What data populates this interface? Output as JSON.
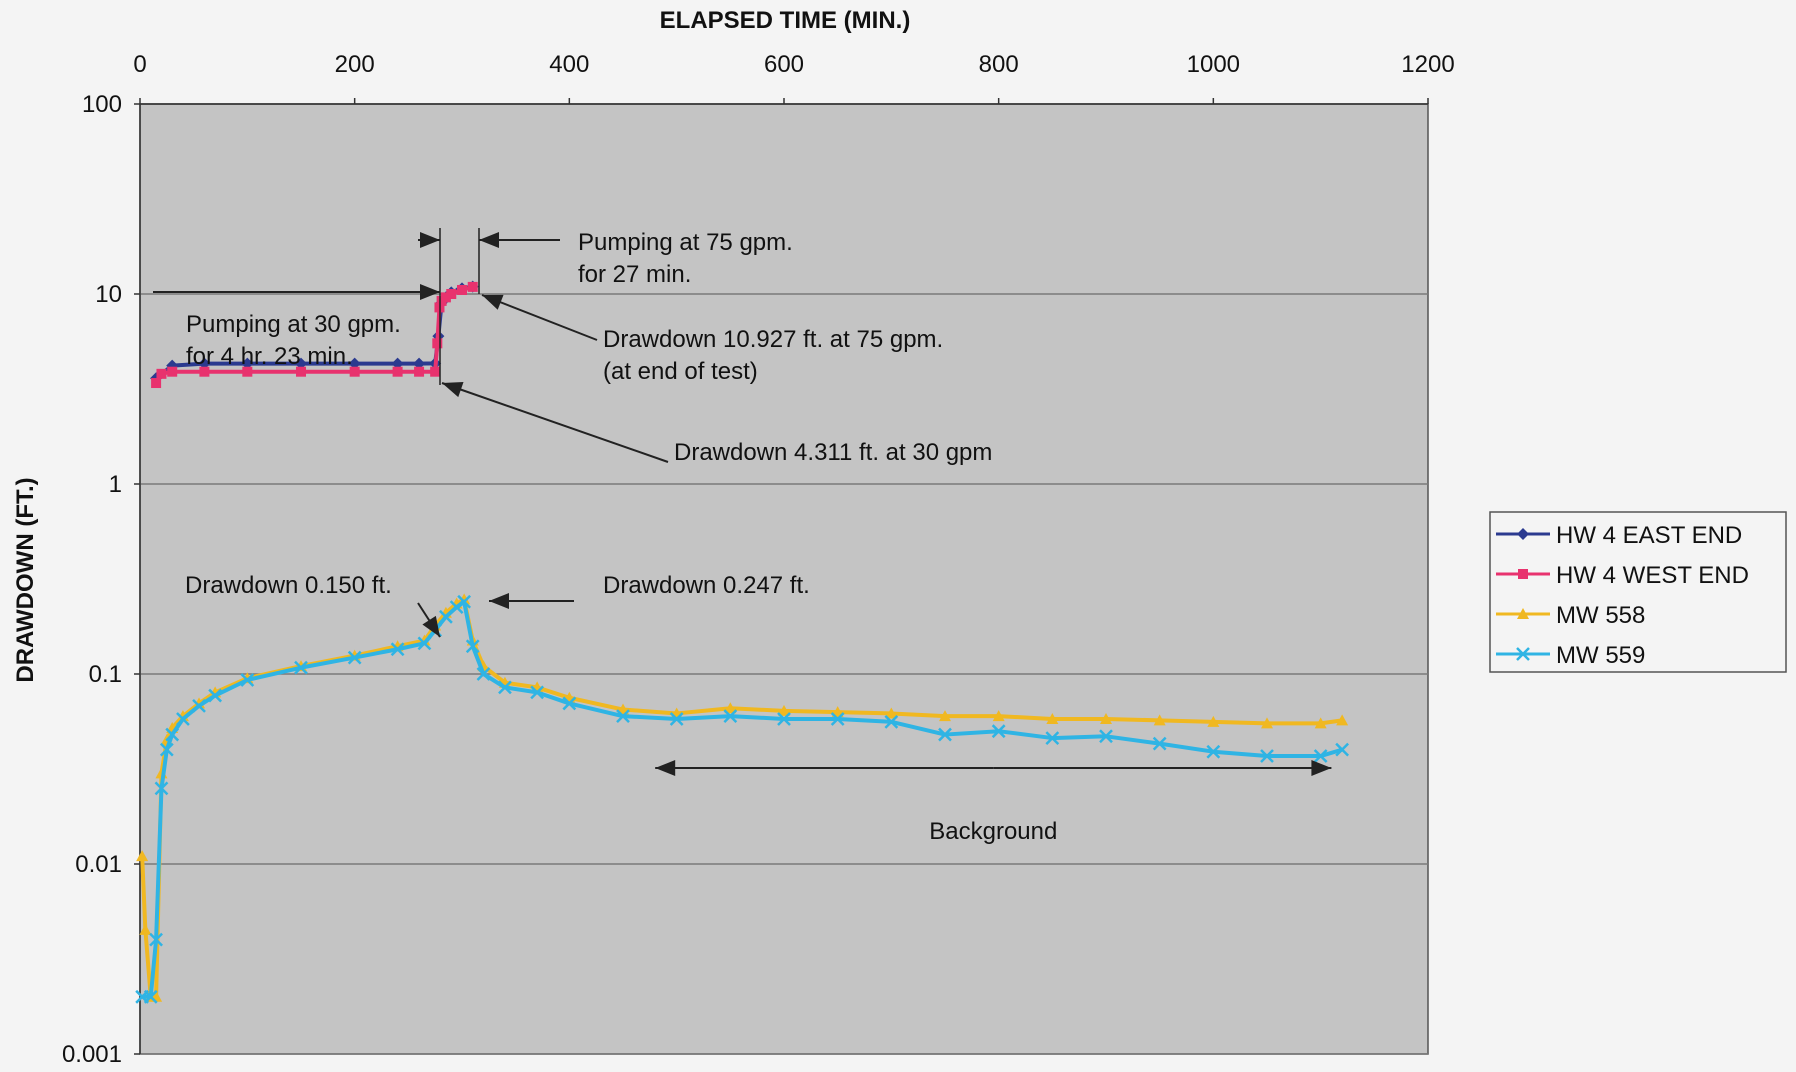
{
  "chart_data": {
    "type": "line",
    "title": "",
    "xlabel": "ELAPSED TIME (MIN.)",
    "ylabel": "DRAWDOWN (FT.)",
    "xlim": [
      0,
      1200
    ],
    "xticks": [
      0,
      200,
      400,
      600,
      800,
      1000,
      1200
    ],
    "ylim": [
      0.001,
      100
    ],
    "yscale": "log",
    "yticks": [
      100,
      10,
      1,
      0.1,
      0.01,
      0.001
    ],
    "ytick_labels": [
      "100",
      "10",
      "1",
      "0.1",
      "0.01",
      "0.001"
    ],
    "x_axis_position": "top",
    "grid": "horizontal",
    "legend_position": "right",
    "series": [
      {
        "name": "HW 4 EAST END",
        "color": "#2b3a8f",
        "marker": "diamond",
        "x": [
          15,
          30,
          60,
          100,
          150,
          200,
          240,
          260,
          275,
          278,
          281,
          285,
          290,
          300,
          310
        ],
        "y": [
          3.6,
          4.2,
          4.3,
          4.3,
          4.3,
          4.3,
          4.3,
          4.3,
          4.311,
          6.0,
          9.0,
          9.6,
          10.2,
          10.7,
          10.927
        ]
      },
      {
        "name": "HW 4 WEST END",
        "color": "#e8326e",
        "marker": "square",
        "x": [
          15,
          20,
          30,
          60,
          100,
          150,
          200,
          240,
          260,
          275,
          277,
          279,
          281,
          285,
          290,
          300,
          310
        ],
        "y": [
          3.4,
          3.8,
          3.9,
          3.9,
          3.9,
          3.9,
          3.9,
          3.9,
          3.9,
          3.9,
          5.5,
          8.5,
          9.2,
          9.6,
          10.0,
          10.5,
          10.9
        ]
      },
      {
        "name": "MW 558",
        "color": "#f0b821",
        "marker": "triangle",
        "x": [
          2,
          5,
          10,
          15,
          20,
          25,
          30,
          40,
          55,
          70,
          100,
          150,
          200,
          240,
          265,
          275,
          285,
          295,
          302,
          310,
          320,
          340,
          370,
          400,
          450,
          500,
          550,
          600,
          650,
          700,
          750,
          800,
          850,
          900,
          950,
          1000,
          1050,
          1100,
          1120
        ],
        "y": [
          0.011,
          0.0045,
          0.002,
          0.002,
          0.03,
          0.045,
          0.052,
          0.06,
          0.07,
          0.08,
          0.095,
          0.11,
          0.125,
          0.14,
          0.15,
          0.18,
          0.21,
          0.235,
          0.247,
          0.15,
          0.11,
          0.09,
          0.085,
          0.075,
          0.065,
          0.062,
          0.066,
          0.064,
          0.063,
          0.062,
          0.06,
          0.06,
          0.058,
          0.058,
          0.057,
          0.056,
          0.055,
          0.055,
          0.057
        ]
      },
      {
        "name": "MW 559",
        "color": "#2fb4e4",
        "marker": "x",
        "x": [
          2,
          10,
          15,
          20,
          25,
          30,
          40,
          55,
          70,
          100,
          150,
          200,
          240,
          265,
          275,
          285,
          295,
          302,
          310,
          320,
          340,
          370,
          400,
          450,
          500,
          550,
          600,
          650,
          700,
          750,
          800,
          850,
          900,
          950,
          1000,
          1050,
          1100,
          1120
        ],
        "y": [
          0.002,
          0.002,
          0.004,
          0.025,
          0.04,
          0.048,
          0.058,
          0.068,
          0.077,
          0.093,
          0.108,
          0.122,
          0.135,
          0.145,
          0.17,
          0.2,
          0.225,
          0.24,
          0.14,
          0.1,
          0.085,
          0.08,
          0.07,
          0.06,
          0.058,
          0.06,
          0.058,
          0.058,
          0.056,
          0.048,
          0.05,
          0.046,
          0.047,
          0.043,
          0.039,
          0.037,
          0.037,
          0.04
        ]
      }
    ],
    "annotations": [
      {
        "id": "pump30",
        "lines": [
          "Pumping at 30 gpm.",
          "for 4 hr. 23 min."
        ]
      },
      {
        "id": "pump75",
        "lines": [
          "Pumping at 75 gpm.",
          "for 27 min."
        ]
      },
      {
        "id": "dd10927",
        "lines": [
          "Drawdown 10.927 ft. at 75 gpm.",
          "(at end of test)"
        ]
      },
      {
        "id": "dd4311",
        "lines": [
          "Drawdown 4.311 ft. at 30 gpm"
        ]
      },
      {
        "id": "dd0150",
        "lines": [
          "Drawdown 0.150 ft."
        ]
      },
      {
        "id": "dd0247",
        "lines": [
          "Drawdown 0.247 ft."
        ]
      },
      {
        "id": "background",
        "lines": [
          "Background"
        ]
      }
    ],
    "background_range": [
      480,
      1110
    ]
  },
  "colors": {
    "plot_background": "#c4c4c4",
    "gridline": "#7a7a7a",
    "arrow": "#222222"
  }
}
